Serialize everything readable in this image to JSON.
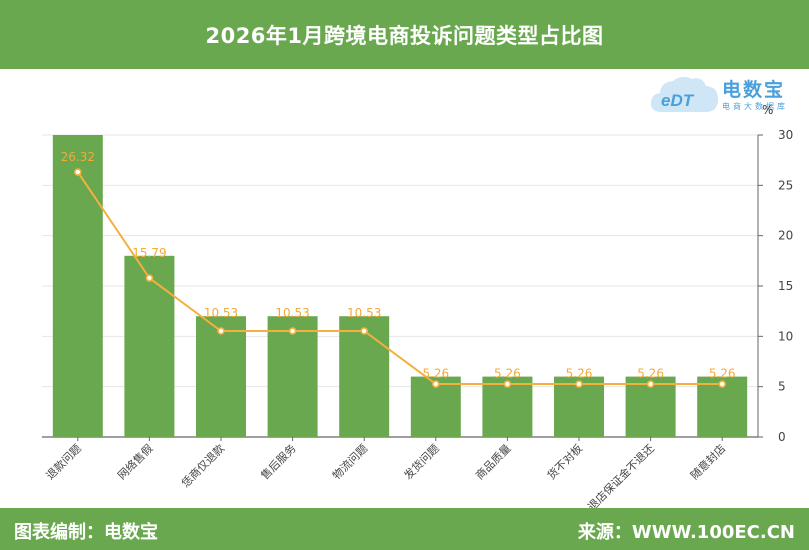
{
  "header": {
    "title": "2026年1月跨境电商投诉问题类型占比图"
  },
  "footer": {
    "left": "图表编制：电数宝",
    "right": "来源：WWW.100EC.CN"
  },
  "logo": {
    "mark": "eDT",
    "name": "电数宝",
    "tagline": "电商大数据库",
    "accent": "#4aa0dc"
  },
  "chart_data": {
    "type": "bar",
    "categories": [
      "退款问题",
      "网络售假",
      "恁商仅退款",
      "售后服务",
      "物流问题",
      "发货问题",
      "商品质量",
      "货不对板",
      "退店保证金不退还",
      "随意封店"
    ],
    "series": [
      {
        "values": [
          30,
          18,
          12,
          12,
          12,
          6,
          6,
          6,
          6,
          6
        ],
        "color": "#6aa84f",
        "kind": "bar"
      },
      {
        "values": [
          26.32,
          15.79,
          10.53,
          10.53,
          10.53,
          5.26,
          5.26,
          5.26,
          5.26,
          5.26
        ],
        "color": "#f4b03e",
        "kind": "line"
      }
    ],
    "data_labels": [
      "26.32",
      "15.79",
      "10.53",
      "10.53",
      "10.53",
      "5.26",
      "5.26",
      "5.26",
      "5.26",
      "5.26"
    ],
    "ylabel": "%",
    "ylim": [
      0,
      30
    ],
    "yticks": [
      0,
      5,
      10,
      15,
      20,
      25,
      30
    ],
    "y_axis_side": "right",
    "grid": true
  }
}
